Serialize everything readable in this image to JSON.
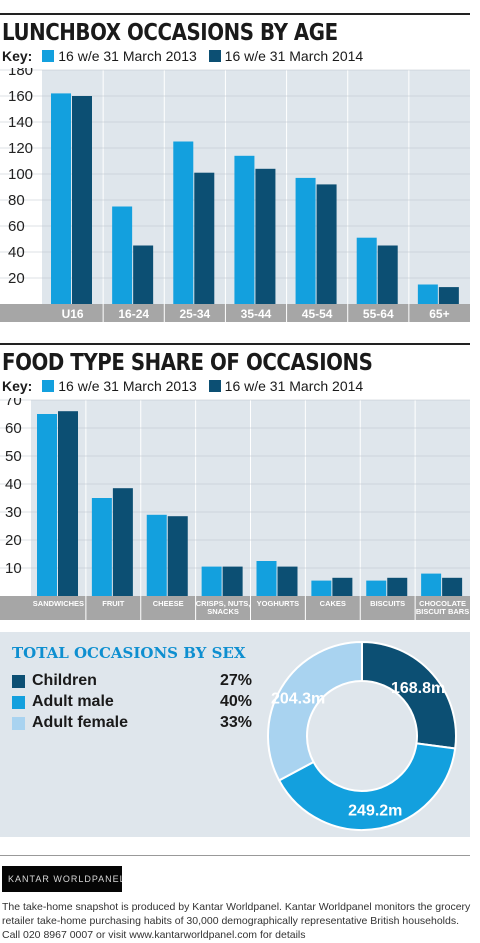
{
  "colors": {
    "s2013": "#13a0de",
    "s2014": "#0c4f73",
    "grid_bg": "#dfe6ec",
    "axis_bar": "#a6a6a6",
    "children": "#0c4f73",
    "adult_male": "#13a0de",
    "adult_female": "#a9d3f0"
  },
  "key_label": "Key:",
  "chart_data": [
    {
      "type": "bar",
      "title": "LUNCHBOX OCCASIONS BY AGE",
      "categories": [
        "U16",
        "16-24",
        "25-34",
        "35-44",
        "45-54",
        "55-64",
        "65+"
      ],
      "series": [
        {
          "name": "16 w/e 31 March 2013",
          "values": [
            162,
            75,
            125,
            114,
            97,
            51,
            15
          ]
        },
        {
          "name": "16 w/e 31 March 2014",
          "values": [
            160,
            45,
            101,
            104,
            92,
            45,
            13
          ]
        }
      ],
      "yticks": [
        20,
        40,
        60,
        80,
        100,
        120,
        140,
        160,
        180
      ],
      "ylim": [
        0,
        180
      ],
      "legend": "top-left"
    },
    {
      "type": "bar",
      "title": "FOOD TYPE SHARE OF OCCASIONS",
      "categories": [
        "SANDWICHES",
        "FRUIT",
        "CHEESE",
        "CRISPS, NUTS, SNACKS",
        "YOGHURTS",
        "CAKES",
        "BISCUITS",
        "CHOCOLATE BISCUIT BARS"
      ],
      "series": [
        {
          "name": "16 w/e 31 March 2013",
          "values": [
            65,
            35,
            29,
            10.5,
            12.5,
            5.5,
            5.5,
            8
          ]
        },
        {
          "name": "16 w/e 31 March 2014",
          "values": [
            66,
            38.5,
            28.5,
            10.5,
            10.5,
            6.5,
            6.5,
            6.5
          ]
        }
      ],
      "yticks": [
        10,
        20,
        30,
        40,
        50,
        60,
        70
      ],
      "ylim": [
        0,
        70
      ],
      "legend": "top-left"
    },
    {
      "type": "pie",
      "title": "TOTAL OCCASIONS BY SEX",
      "categories": [
        "Children",
        "Adult male",
        "Adult female"
      ],
      "percent_labels": [
        "27%",
        "40%",
        "33%"
      ],
      "values": [
        168.8,
        249.2,
        204.3
      ],
      "value_labels": [
        "168.8m",
        "249.2m",
        "204.3m"
      ]
    }
  ],
  "logo_text": "KANTAR WORLDPANEL",
  "footnote": "The take-home snapshot is produced by Kantar Worldpanel. Kantar Worldpanel monitors the grocery retailer take-home purchasing habits of 30,000 demographically representative British households. Call 020 8967 0007 or visit www.kantarworldpanel.com for details"
}
